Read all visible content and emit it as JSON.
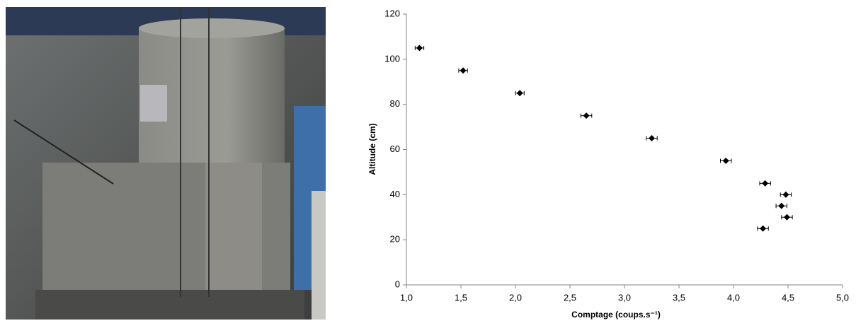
{
  "chart_data": {
    "type": "scatter",
    "xlabel": "Comptage (coups.s⁻¹)",
    "ylabel": "Altitude (cm)",
    "x": [
      1.12,
      1.52,
      2.04,
      2.65,
      3.25,
      3.93,
      4.29,
      4.48,
      4.44,
      4.49,
      4.27
    ],
    "values": [
      105,
      95,
      85,
      75,
      65,
      55,
      45,
      40,
      35,
      30,
      25
    ],
    "xerr": [
      0.04,
      0.04,
      0.04,
      0.05,
      0.05,
      0.05,
      0.05,
      0.05,
      0.05,
      0.05,
      0.05
    ],
    "color": "#000000",
    "xlim": [
      1.0,
      5.0
    ],
    "xticks": [
      {
        "value": 1.0,
        "label": "1,0"
      },
      {
        "value": 1.5,
        "label": "1,5"
      },
      {
        "value": 2.0,
        "label": "2,0"
      },
      {
        "value": 2.5,
        "label": "2,5"
      },
      {
        "value": 3.0,
        "label": "3,0"
      },
      {
        "value": 3.5,
        "label": "3,5"
      },
      {
        "value": 4.0,
        "label": "4,0"
      },
      {
        "value": 4.5,
        "label": "4,5"
      },
      {
        "value": 5.0,
        "label": "5,0"
      }
    ],
    "ylim": [
      0,
      120
    ],
    "yticks": [
      0,
      20,
      40,
      60,
      80,
      100,
      120
    ],
    "grid": false
  }
}
